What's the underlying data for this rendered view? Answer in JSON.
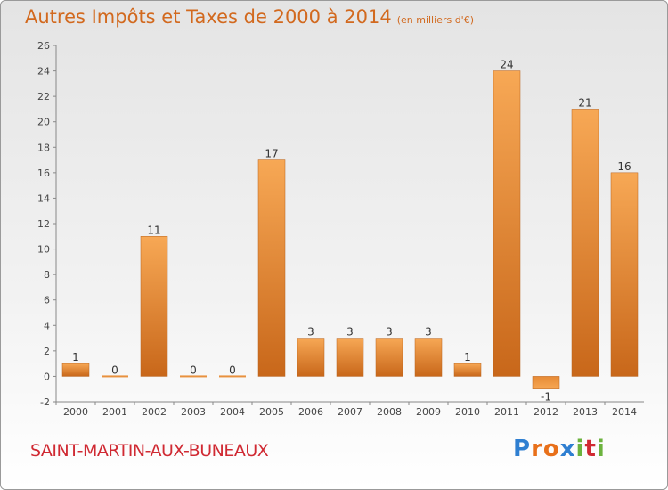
{
  "title": "Autres Impôts et Taxes de 2000 à 2014",
  "subtitle": "(en milliers d'€)",
  "commune": "SAINT-MARTIN-AUX-BUNEAUX",
  "logo": {
    "text": "Proxiti",
    "letters": [
      "P",
      "r",
      "o",
      "x",
      "i",
      "t",
      "i"
    ],
    "colors": [
      "#2f7fd1",
      "#e8701a",
      "#e8701a",
      "#2f7fd1",
      "#6cb33e",
      "#d02a33",
      "#6cb33e"
    ]
  },
  "colors": {
    "title": "#d2691e",
    "bar_light": "#f5a24f",
    "bar_dark": "#c8671a",
    "commune": "#d02a33"
  },
  "chart_data": {
    "type": "bar",
    "title": "Autres Impôts et Taxes de 2000 à 2014",
    "subtitle": "(en milliers d'€)",
    "categories": [
      "2000",
      "2001",
      "2002",
      "2003",
      "2004",
      "2005",
      "2006",
      "2007",
      "2008",
      "2009",
      "2010",
      "2011",
      "2012",
      "2013",
      "2014"
    ],
    "values": [
      1,
      0,
      11,
      0,
      0,
      17,
      3,
      3,
      3,
      3,
      1,
      24,
      -1,
      21,
      16
    ],
    "ylim": [
      -2,
      26
    ],
    "yticks": [
      -2,
      0,
      2,
      4,
      6,
      8,
      10,
      12,
      14,
      16,
      18,
      20,
      22,
      24,
      26
    ],
    "grid": false
  }
}
